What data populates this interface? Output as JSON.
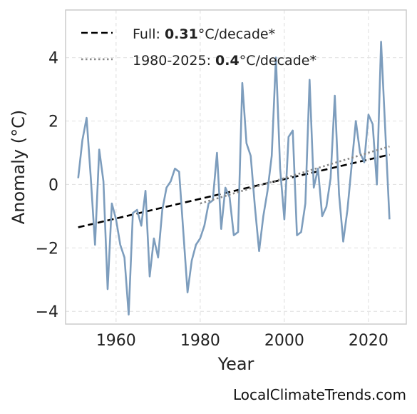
{
  "colors": {
    "series": "#7d9dbd",
    "trend_full": "#000000",
    "trend_recent": "#888888",
    "grid": "#e3e3e3",
    "frame": "#cccccc"
  },
  "chart_data": {
    "type": "line",
    "xlabel": "Year",
    "ylabel": "Anomaly (°C)",
    "xlim": [
      1948,
      2029
    ],
    "ylim": [
      -4.4,
      5.5
    ],
    "x_ticks": [
      1960,
      1980,
      2000,
      2020
    ],
    "y_ticks": [
      -4,
      -2,
      0,
      2,
      4
    ],
    "y_tick_labels": [
      "−4",
      "−2",
      "0",
      "2",
      "4"
    ],
    "grid": true,
    "legend_position": "top-left",
    "series": [
      {
        "x": [
          1951,
          1952,
          1953,
          1954,
          1955,
          1956,
          1957,
          1958,
          1959,
          1960,
          1961,
          1962,
          1963,
          1964,
          1965,
          1966,
          1967,
          1968,
          1969,
          1970,
          1971,
          1972,
          1973,
          1974,
          1975,
          1976,
          1977,
          1978,
          1979,
          1980,
          1981,
          1982,
          1983,
          1984,
          1985,
          1986,
          1987,
          1988,
          1989,
          1990,
          1991,
          1992,
          1993,
          1994,
          1995,
          1996,
          1997,
          1998,
          1999,
          2000,
          2001,
          2002,
          2003,
          2004,
          2005,
          2006,
          2007,
          2008,
          2009,
          2010,
          2011,
          2012,
          2013,
          2014,
          2015,
          2016,
          2017,
          2018,
          2019,
          2020,
          2021,
          2022,
          2023,
          2024,
          2025
        ],
        "y": [
          0.2,
          1.4,
          2.1,
          0.2,
          -1.9,
          1.1,
          0.1,
          -3.3,
          -0.6,
          -1.1,
          -1.9,
          -2.3,
          -4.1,
          -0.9,
          -0.8,
          -1.3,
          -0.2,
          -2.9,
          -1.7,
          -2.3,
          -0.8,
          -0.1,
          0.1,
          0.5,
          0.4,
          -1.5,
          -3.4,
          -2.4,
          -1.9,
          -1.7,
          -1.3,
          -0.6,
          -0.5,
          1.0,
          -1.4,
          -0.1,
          -0.4,
          -1.6,
          -1.5,
          3.2,
          1.3,
          0.9,
          -0.7,
          -2.1,
          -1.0,
          -0.2,
          0.9,
          4.0,
          0.5,
          -1.1,
          1.5,
          1.7,
          -1.6,
          -1.5,
          -0.6,
          3.3,
          -0.1,
          0.5,
          -1.0,
          -0.7,
          0.2,
          2.8,
          -0.3,
          -1.8,
          -0.8,
          0.6,
          2.0,
          1.0,
          0.7,
          2.2,
          1.9,
          0.0,
          4.5,
          1.7,
          -1.1
        ]
      }
    ],
    "trend_lines": [
      {
        "x": [
          1951,
          2025
        ],
        "y": [
          -1.35,
          0.94
        ]
      },
      {
        "x": [
          1980,
          2025
        ],
        "y": [
          -0.6,
          1.2
        ]
      }
    ]
  },
  "legend": [
    {
      "prefix": "Full: ",
      "value": "0.31",
      "suffix": "°C/decade*"
    },
    {
      "prefix": "1980-2025: ",
      "value": "0.4",
      "suffix": "°C/decade*"
    }
  ],
  "watermark": "LocalClimateTrends.com"
}
